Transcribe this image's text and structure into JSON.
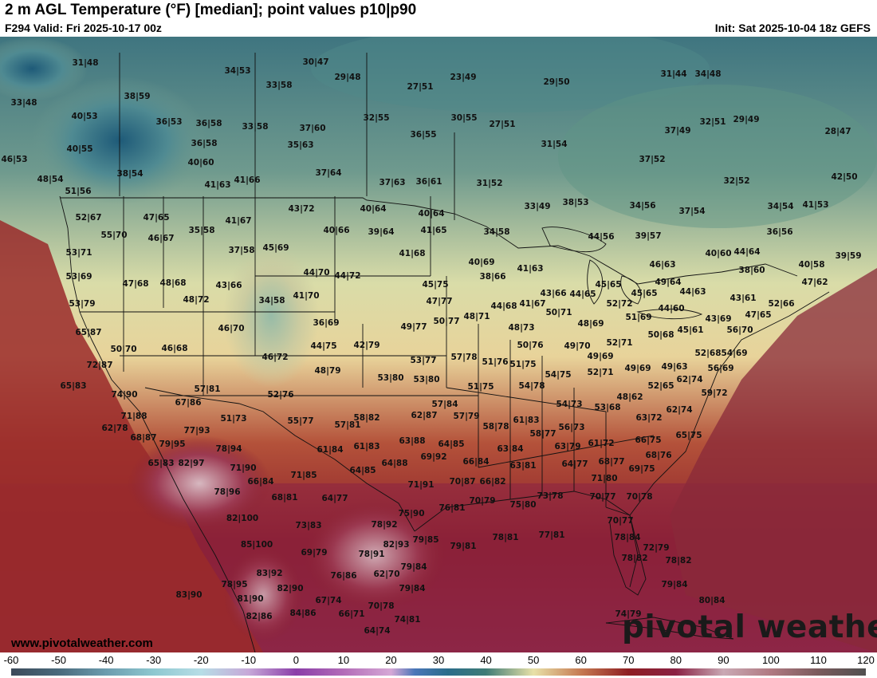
{
  "header": {
    "title": "2 m AGL Temperature (°F) [median]; point values p10|p90",
    "valid": "F294 Valid: Fri 2025-10-17 00z",
    "init": "Init: Sat 2025-10-04 18z GEFS"
  },
  "footer": {
    "website": "www.pivotalweather.com",
    "logo_text": "pivotal weather"
  },
  "colorbar": {
    "ticks": [
      "-60",
      "-50",
      "-40",
      "-30",
      "-20",
      "-10",
      "0",
      "10",
      "20",
      "30",
      "40",
      "50",
      "60",
      "70",
      "80",
      "90",
      "100",
      "110",
      "120"
    ],
    "range": [
      -60,
      120
    ],
    "stops": [
      {
        "v": -60,
        "c": "#3c4a5a"
      },
      {
        "v": -50,
        "c": "#4a6a7c"
      },
      {
        "v": -40,
        "c": "#6c9cae"
      },
      {
        "v": -30,
        "c": "#8ec8d0"
      },
      {
        "v": -20,
        "c": "#b7dde6"
      },
      {
        "v": -10,
        "c": "#c7a8d8"
      },
      {
        "v": 0,
        "c": "#8a3ea8"
      },
      {
        "v": 10,
        "c": "#b36cb8"
      },
      {
        "v": 20,
        "c": "#d6a8d6"
      },
      {
        "v": 25,
        "c": "#4a76b8"
      },
      {
        "v": 32,
        "c": "#2b6d8a"
      },
      {
        "v": 40,
        "c": "#3f7c76"
      },
      {
        "v": 50,
        "c": "#e8e1a8"
      },
      {
        "v": 60,
        "c": "#c67a52"
      },
      {
        "v": 70,
        "c": "#8e1e22"
      },
      {
        "v": 80,
        "c": "#8a2244"
      },
      {
        "v": 90,
        "c": "#caa9b4"
      },
      {
        "v": 100,
        "c": "#b07a82"
      },
      {
        "v": 110,
        "c": "#7a5a5c"
      },
      {
        "v": 120,
        "c": "#505050"
      }
    ]
  },
  "map": {
    "point_values": [
      "31|48",
      "34|53",
      "30|47",
      "29|48",
      "27|51",
      "23|49",
      "29|50",
      "31|44",
      "34|48",
      "33|48",
      "38|59",
      "33|58",
      "32|55",
      "30|55",
      "27|51",
      "32|51",
      "29|49",
      "40|53",
      "36|53",
      "36|58",
      "33|58",
      "37|60",
      "36|55",
      "37|49",
      "28|47",
      "40|55",
      "36|58",
      "35|63",
      "31|54",
      "46|53",
      "40|60",
      "38|54",
      "37|64",
      "37|52",
      "48|54",
      "41|63",
      "41|66",
      "37|63",
      "36|61",
      "31|52",
      "32|52",
      "42|50",
      "51|56",
      "33|49",
      "38|53",
      "34|56",
      "52|67",
      "47|65",
      "41|67",
      "43|72",
      "40|64",
      "40|64",
      "37|54",
      "34|54",
      "41|53",
      "55|70",
      "46|67",
      "35|58",
      "40|66",
      "39|64",
      "41|65",
      "34|58",
      "36|56",
      "44|56",
      "39|57",
      "53|71",
      "37|58",
      "45|69",
      "41|68",
      "40|60",
      "44|64",
      "39|59",
      "40|69",
      "41|63",
      "40|58",
      "53|69",
      "47|68",
      "48|68",
      "43|66",
      "44|70",
      "44|72",
      "38|66",
      "46|63",
      "38|60",
      "49|64",
      "44|63",
      "47|62",
      "45|75",
      "45|65",
      "43|66",
      "44|65",
      "45|65",
      "53|79",
      "48|72",
      "34|58",
      "41|70",
      "47|77",
      "44|68",
      "41|67",
      "52|72",
      "44|60",
      "43|61",
      "52|66",
      "48|71",
      "50|71",
      "51|69",
      "47|65",
      "36|69",
      "49|77",
      "50|77",
      "48|73",
      "48|69",
      "43|69",
      "65|87",
      "46|70",
      "50|70",
      "46|68",
      "44|75",
      "42|79",
      "50|76",
      "49|70",
      "52|71",
      "50|68",
      "45|61",
      "56|70",
      "46|72",
      "57|78",
      "51|76",
      "51|75",
      "49|69",
      "52|68",
      "54|69",
      "72|87",
      "48|79",
      "53|77",
      "54|75",
      "52|71",
      "49|69",
      "49|63",
      "56|69",
      "53|80",
      "53|80",
      "65|83",
      "51|75",
      "54|78",
      "52|65",
      "62|74",
      "74|90",
      "57|81",
      "52|76",
      "57|84",
      "54|73",
      "48|62",
      "59|72",
      "67|86",
      "53|68",
      "62|74",
      "71|88",
      "51|73",
      "55|77",
      "58|82",
      "62|87",
      "57|79",
      "61|83",
      "63|72",
      "62|78",
      "68|87",
      "77|93",
      "57|81",
      "58|78",
      "58|77",
      "56|73",
      "65|75",
      "79|95",
      "78|94",
      "61|84",
      "61|83",
      "63|88",
      "64|85",
      "63|84",
      "63|79",
      "61|72",
      "66|75",
      "65|83",
      "82|97",
      "71|90",
      "64|88",
      "69|92",
      "66|84",
      "63|81",
      "64|77",
      "68|77",
      "68|76",
      "66|84",
      "71|85",
      "64|85",
      "71|91",
      "70|87",
      "66|82",
      "71|80",
      "69|75",
      "78|96",
      "68|81",
      "64|77",
      "76|81",
      "70|79",
      "75|80",
      "73|78",
      "70|77",
      "70|78",
      "75|90",
      "82|100",
      "73|83",
      "78|92",
      "70|77",
      "85|100",
      "82|93",
      "79|85",
      "79|81",
      "78|81",
      "77|81",
      "78|84",
      "72|79",
      "69|79",
      "78|91",
      "83|92",
      "82|90",
      "78|82",
      "78|82",
      "76|86",
      "62|70",
      "79|84",
      "79|84",
      "78|95",
      "83|90",
      "79|84",
      "81|90",
      "67|74",
      "70|78",
      "80|84",
      "82|86",
      "84|86",
      "66|71",
      "74|81",
      "74|79",
      "64|74"
    ]
  }
}
